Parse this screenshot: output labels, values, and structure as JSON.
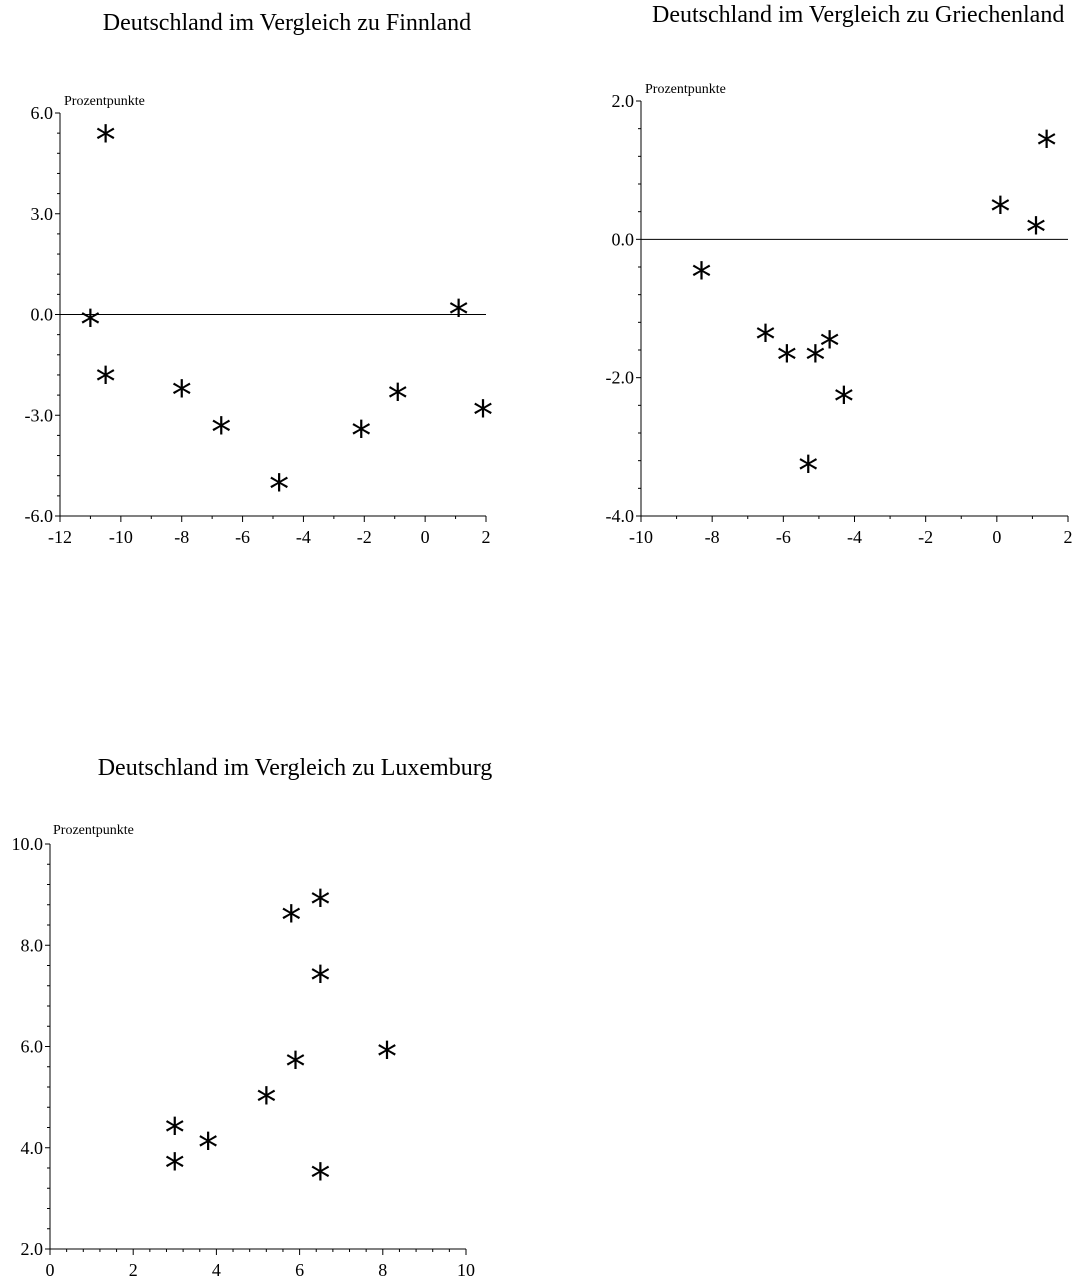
{
  "chart_data": [
    {
      "type": "scatter",
      "title": "Deutschland im Vergleich zu Finnland",
      "ylabel": "Prozentpunkte",
      "xlabel": "",
      "xlim": [
        -12,
        2
      ],
      "ylim": [
        -6.0,
        6.0
      ],
      "xticks": [
        "-12",
        "-10",
        "-8",
        "-6",
        "-4",
        "-2",
        "0",
        "2"
      ],
      "yticks": [
        "6.0",
        "3.0",
        "0.0",
        "-3.0",
        "-6.0"
      ],
      "marker": "*",
      "points": [
        {
          "x": -10.5,
          "y": 5.5
        },
        {
          "x": -11.0,
          "y": 0.0
        },
        {
          "x": -10.5,
          "y": -1.7
        },
        {
          "x": -8.0,
          "y": -2.1
        },
        {
          "x": -6.7,
          "y": -3.2
        },
        {
          "x": -4.8,
          "y": -4.9
        },
        {
          "x": -2.1,
          "y": -3.3
        },
        {
          "x": -0.9,
          "y": -2.2
        },
        {
          "x": 1.1,
          "y": 0.3
        },
        {
          "x": 1.9,
          "y": -2.7
        }
      ]
    },
    {
      "type": "scatter",
      "title": "Deutschland im Vergleich zu Griechenland",
      "ylabel": "Prozentpunkte",
      "xlabel": "",
      "xlim": [
        -10,
        2
      ],
      "ylim": [
        -4.0,
        2.0
      ],
      "xticks": [
        "-10",
        "-8",
        "-6",
        "-4",
        "-2",
        "0",
        "2"
      ],
      "yticks": [
        "2.0",
        "0.0",
        "-2.0",
        "-4.0"
      ],
      "marker": "*",
      "points": [
        {
          "x": -8.3,
          "y": -0.4
        },
        {
          "x": -6.5,
          "y": -1.3
        },
        {
          "x": -5.9,
          "y": -1.6
        },
        {
          "x": -5.1,
          "y": -1.6
        },
        {
          "x": -4.7,
          "y": -1.4
        },
        {
          "x": -5.3,
          "y": -3.2
        },
        {
          "x": -4.3,
          "y": -2.2
        },
        {
          "x": 0.1,
          "y": 0.55
        },
        {
          "x": 1.1,
          "y": 0.25
        },
        {
          "x": 1.4,
          "y": 1.5
        }
      ]
    },
    {
      "type": "scatter",
      "title": "Deutschland im Vergleich zu Luxemburg",
      "ylabel": "Prozentpunkte",
      "xlabel": "",
      "xlim": [
        0,
        10
      ],
      "ylim": [
        2.0,
        10.0
      ],
      "xticks": [
        "0",
        "2",
        "4",
        "6",
        "8",
        "10"
      ],
      "yticks": [
        "10.0",
        "8.0",
        "6.0",
        "4.0",
        "2.0"
      ],
      "marker": "*",
      "points": [
        {
          "x": 5.8,
          "y": 8.7
        },
        {
          "x": 6.5,
          "y": 9.0
        },
        {
          "x": 6.5,
          "y": 7.5
        },
        {
          "x": 8.1,
          "y": 6.0
        },
        {
          "x": 5.9,
          "y": 5.8
        },
        {
          "x": 5.2,
          "y": 5.1
        },
        {
          "x": 3.0,
          "y": 4.5
        },
        {
          "x": 3.8,
          "y": 4.2
        },
        {
          "x": 3.0,
          "y": 3.8
        },
        {
          "x": 6.5,
          "y": 3.6
        }
      ]
    }
  ]
}
